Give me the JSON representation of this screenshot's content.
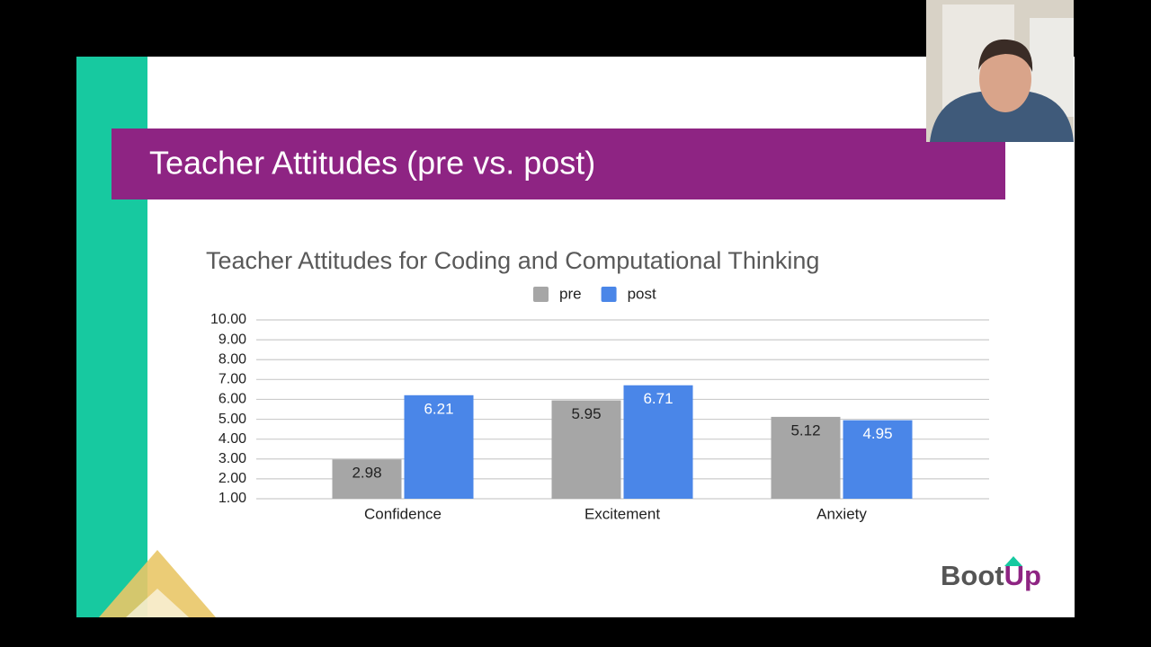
{
  "slide": {
    "title": "Teacher Attitudes (pre vs. post)",
    "logo": [
      "Boot",
      "Up"
    ]
  },
  "chart_data": {
    "type": "bar",
    "title": "Teacher Attitudes for Coding and Computational Thinking",
    "categories": [
      "Confidence",
      "Excitement",
      "Anxiety"
    ],
    "series": [
      {
        "name": "pre",
        "color": "#a6a6a6",
        "values": [
          2.98,
          5.95,
          5.12
        ]
      },
      {
        "name": "post",
        "color": "#4a86e8",
        "values": [
          6.21,
          6.71,
          4.95
        ]
      }
    ],
    "ylim": [
      1,
      10
    ],
    "yticks": [
      {
        "value": 1,
        "label": "1.00"
      },
      {
        "value": 2,
        "label": "2.00"
      },
      {
        "value": 3,
        "label": "3.00"
      },
      {
        "value": 4,
        "label": "4.00"
      },
      {
        "value": 5,
        "label": "5.00"
      },
      {
        "value": 6,
        "label": "6.00"
      },
      {
        "value": 7,
        "label": "7.00"
      },
      {
        "value": 8,
        "label": "8.00"
      },
      {
        "value": 9,
        "label": "9.00"
      },
      {
        "value": 10,
        "label": "10.00"
      }
    ],
    "grid": true,
    "legend": "top"
  }
}
